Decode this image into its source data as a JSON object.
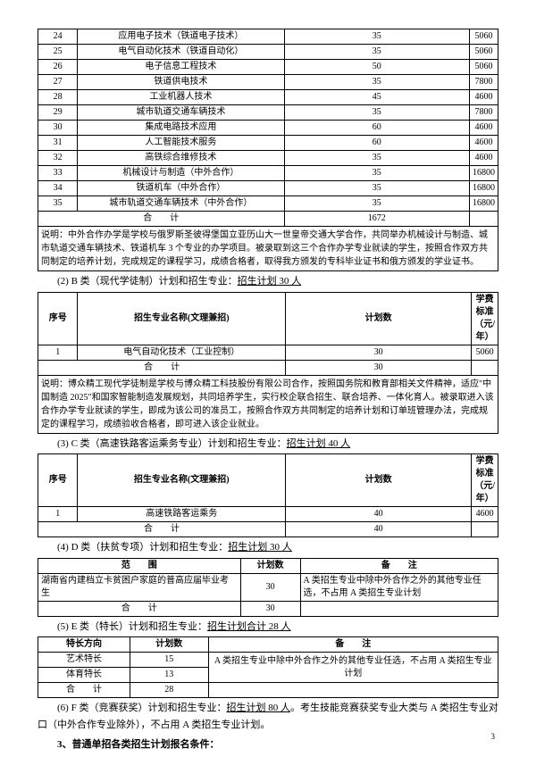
{
  "tableA": {
    "rows": [
      {
        "n": "24",
        "major": "应用电子技术（铁道电子技术）",
        "count": "35",
        "fee": "5060"
      },
      {
        "n": "25",
        "major": "电气自动化技术（铁道自动化）",
        "count": "35",
        "fee": "5060"
      },
      {
        "n": "26",
        "major": "电子信息工程技术",
        "count": "50",
        "fee": "5060"
      },
      {
        "n": "27",
        "major": "铁道供电技术",
        "count": "35",
        "fee": "7800"
      },
      {
        "n": "28",
        "major": "工业机器人技术",
        "count": "45",
        "fee": "4600"
      },
      {
        "n": "29",
        "major": "城市轨道交通车辆技术",
        "count": "35",
        "fee": "7800"
      },
      {
        "n": "30",
        "major": "集成电路技术应用",
        "count": "60",
        "fee": "4600"
      },
      {
        "n": "31",
        "major": "人工智能技术服务",
        "count": "60",
        "fee": "4600"
      },
      {
        "n": "32",
        "major": "高铁综合维修技术",
        "count": "35",
        "fee": "4600"
      },
      {
        "n": "33",
        "major": "机械设计与制造（中外合作）",
        "count": "35",
        "fee": "16800"
      },
      {
        "n": "34",
        "major": "铁道机车（中外合作）",
        "count": "35",
        "fee": "16800"
      },
      {
        "n": "35",
        "major": "城市轨道交通车辆技术（中外合作）",
        "count": "35",
        "fee": "16800"
      }
    ],
    "totalLabel": "合　　计",
    "totalCount": "1672",
    "note": "说明：中外合作办学是学校与俄罗斯圣彼得堡国立亚历山大一世皇帝交通大学合作，共同举办机械设计与制造、城市轨道交通车辆技术、铁道机车 3 个专业的办学项目。被录取到这三个合作办学专业就读的学生，按照合作双方共同制定的培养计划，完成规定的课程学习，成绩合格者，取得我方颁发的专科毕业证书和俄方颁发的学业证书。"
  },
  "sectionB": {
    "title": "(2) B 类（现代学徒制）计划和招生专业：",
    "plan": "招生计划 30 人",
    "th": [
      "序号",
      "招生专业名称(文理兼招)",
      "计划数",
      "学费标准（元/年）"
    ],
    "rows": [
      {
        "n": "1",
        "major": "电气自动化技术（工业控制）",
        "count": "30",
        "fee": "5060"
      }
    ],
    "totalLabel": "合　　计",
    "totalCount": "30",
    "note": "说明：博众精工现代学徒制是学校与博众精工科技股份有限公司合作，按照国务院和教育部相关文件精神，适应\"中国制造 2025\"和国家智能制造发展规划，共同培养学生，实行校企联合招生、联合培养、一体化育人。被录取进入该合作办学专业就读的学生，即成为该公司的准员工，按照合作双方共同制定的培养计划和订单班管理办法，完成规定的课程学习，成绩验收合格者，即可进入该企业就业。"
  },
  "sectionC": {
    "title": "(3) C 类（高速铁路客运乘务专业）计划和招生专业：",
    "plan": "招生计划 40 人",
    "th": [
      "序号",
      "招生专业名称(文理兼招)",
      "计划数",
      "学费标准（元/年）"
    ],
    "rows": [
      {
        "n": "1",
        "major": "高速铁路客运乘务",
        "count": "40",
        "fee": "4600"
      }
    ],
    "totalLabel": "合　　计",
    "totalCount": "40"
  },
  "sectionD": {
    "title": "(4) D 类（扶贫专项）计划和招生专业：",
    "plan": "招生计划 30 人",
    "th": [
      "范　　围",
      "计划数",
      "备　　注"
    ],
    "rows": [
      {
        "scope": "湖南省内建档立卡贫困户家庭的普高应届毕业考生",
        "count": "30",
        "note": "A 类招生专业中除中外合作之外的其他专业任选，不占用 A 类招生专业计划"
      }
    ],
    "totalLabel": "合　　计",
    "totalCount": "30"
  },
  "sectionE": {
    "title": "(5) E 类（特长）计划和招生专业：",
    "plan": "招生计划合计 28 人",
    "th": [
      "特长方向",
      "计划数",
      "备　　注"
    ],
    "rows": [
      {
        "k": "艺术特长",
        "c": "15"
      },
      {
        "k": "体育特长",
        "c": "13"
      }
    ],
    "mergeNote": "A 类招生专业中除中外合作之外的其他专业任选，不占用 A 类招生专业计划",
    "totalLabel": "合　　计",
    "totalCount": "28"
  },
  "sectionF": {
    "title": "(6) F 类（竞赛获奖）计划和招生专业：",
    "plan": "招生计划 80 人",
    "tail": "。考生技能竞赛获奖专业大类与 A 类招生专业对口（中外合作专业除外），不占用 A 类招生专业计划。"
  },
  "sub3": "3、普通单招各类招生计划报名条件：",
  "pageNum": "3"
}
